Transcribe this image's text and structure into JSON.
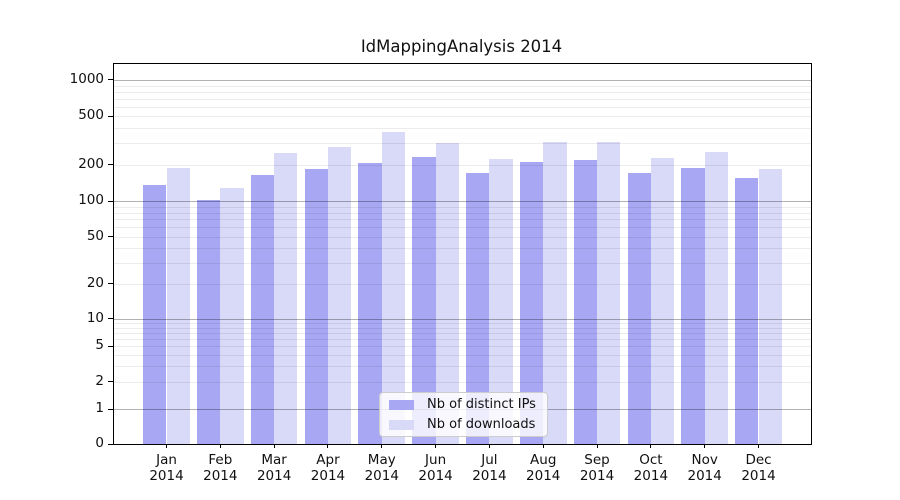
{
  "chart_data": {
    "type": "bar",
    "title": "IdMappingAnalysis 2014",
    "categories": [
      {
        "month": "Jan",
        "year": "2014"
      },
      {
        "month": "Feb",
        "year": "2014"
      },
      {
        "month": "Mar",
        "year": "2014"
      },
      {
        "month": "Apr",
        "year": "2014"
      },
      {
        "month": "May",
        "year": "2014"
      },
      {
        "month": "Jun",
        "year": "2014"
      },
      {
        "month": "Jul",
        "year": "2014"
      },
      {
        "month": "Aug",
        "year": "2014"
      },
      {
        "month": "Sep",
        "year": "2014"
      },
      {
        "month": "Oct",
        "year": "2014"
      },
      {
        "month": "Nov",
        "year": "2014"
      },
      {
        "month": "Dec",
        "year": "2014"
      }
    ],
    "series": [
      {
        "name": "Nb of distinct IPs",
        "color": "#a7a7f4",
        "values": [
          135,
          103,
          166,
          183,
          205,
          230,
          172,
          210,
          220,
          172,
          188,
          155
        ]
      },
      {
        "name": "Nb of downloads",
        "color": "#d9d9f8",
        "values": [
          188,
          128,
          252,
          281,
          370,
          300,
          222,
          310,
          310,
          226,
          255,
          186
        ]
      }
    ],
    "xlabel": "",
    "ylabel": "",
    "yscale": "symlog",
    "ylim": [
      0,
      1350
    ],
    "yticks": [
      {
        "value": 1000,
        "label": "1000"
      },
      {
        "value": 500,
        "label": "500"
      },
      {
        "value": 200,
        "label": "200"
      },
      {
        "value": 100,
        "label": "100"
      },
      {
        "value": 50,
        "label": "50"
      },
      {
        "value": 20,
        "label": "20"
      },
      {
        "value": 10,
        "label": "10"
      },
      {
        "value": 5,
        "label": "5"
      },
      {
        "value": 2,
        "label": "2"
      },
      {
        "value": 1,
        "label": "1"
      },
      {
        "value": 0,
        "label": "0"
      }
    ],
    "grid": "on",
    "legend_position": "lower center"
  }
}
